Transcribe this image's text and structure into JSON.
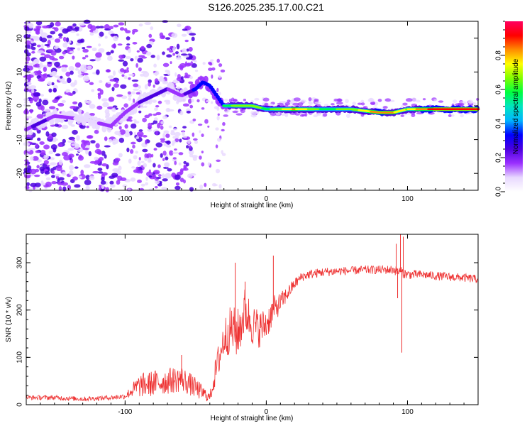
{
  "title": "S126.2025.235.17.00.C21",
  "chart_data": [
    {
      "type": "heatmap",
      "xlabel": "Height of straight line (km)",
      "ylabel": "Frequency (Hz)",
      "xlim": [
        -170,
        150
      ],
      "ylim": [
        -25,
        25
      ],
      "x_ticks": [
        -100,
        0,
        100
      ],
      "y_ticks": [
        -20,
        -10,
        0,
        10,
        20
      ],
      "colorbar": {
        "label": "Normalized spectral amplitude",
        "range": [
          0,
          1
        ],
        "ticks": [
          "0.0",
          "0.2",
          "0.4",
          "0.6",
          "0.8"
        ],
        "tick_values": [
          0.0,
          0.2,
          0.4,
          0.6,
          0.8
        ],
        "colors": [
          "#ffffff",
          "#e8d8ff",
          "#9b30ff",
          "#4b00e0",
          "#0000ff",
          "#00b4ff",
          "#00e5c0",
          "#00ff40",
          "#80ff00",
          "#ffff00",
          "#ff8c00",
          "#ff0000",
          "#ff0060"
        ]
      },
      "ridge": [
        {
          "x": -170,
          "y": -7,
          "a": 0.25
        },
        {
          "x": -160,
          "y": -5,
          "a": 0.35
        },
        {
          "x": -150,
          "y": -3,
          "a": 0.25
        },
        {
          "x": -130,
          "y": -4,
          "a": 0.15
        },
        {
          "x": -110,
          "y": -6,
          "a": 0.2
        },
        {
          "x": -100,
          "y": -2,
          "a": 0.25
        },
        {
          "x": -90,
          "y": 1,
          "a": 0.3
        },
        {
          "x": -80,
          "y": 3,
          "a": 0.3
        },
        {
          "x": -70,
          "y": 5,
          "a": 0.3
        },
        {
          "x": -60,
          "y": 3,
          "a": 0.25
        },
        {
          "x": -50,
          "y": 5,
          "a": 0.45
        },
        {
          "x": -45,
          "y": 7,
          "a": 0.5
        },
        {
          "x": -40,
          "y": 6,
          "a": 0.5
        },
        {
          "x": -35,
          "y": 3,
          "a": 0.45
        },
        {
          "x": -30,
          "y": 0,
          "a": 0.55
        },
        {
          "x": -20,
          "y": 0,
          "a": 0.7
        },
        {
          "x": -10,
          "y": 0,
          "a": 0.7
        },
        {
          "x": 0,
          "y": -1,
          "a": 0.6
        },
        {
          "x": 20,
          "y": -1,
          "a": 0.8
        },
        {
          "x": 40,
          "y": -1,
          "a": 0.6
        },
        {
          "x": 60,
          "y": -1,
          "a": 0.65
        },
        {
          "x": 80,
          "y": -2,
          "a": 0.85
        },
        {
          "x": 90,
          "y": -2,
          "a": 0.8
        },
        {
          "x": 100,
          "y": -1,
          "a": 0.7
        },
        {
          "x": 110,
          "y": -1,
          "a": 0.85
        },
        {
          "x": 130,
          "y": -1,
          "a": 0.95
        },
        {
          "x": 150,
          "y": -1,
          "a": 0.9
        }
      ]
    },
    {
      "type": "line",
      "xlabel": "Height of straight line (km)",
      "ylabel": "SNR (10 * v/v)",
      "xlim": [
        -170,
        150
      ],
      "ylim": [
        0,
        360
      ],
      "x_ticks": [
        -100,
        0,
        100
      ],
      "y_ticks": [
        0,
        100,
        200,
        300
      ],
      "color": "#ee3030",
      "series": [
        {
          "name": "SNR",
          "x": [
            -170,
            -150,
            -130,
            -110,
            -100,
            -95,
            -90,
            -80,
            -70,
            -60,
            -50,
            -40,
            -35,
            -30,
            -25,
            -20,
            -15,
            -10,
            -5,
            0,
            5,
            10,
            15,
            20,
            25,
            30,
            40,
            50,
            60,
            70,
            80,
            90,
            95,
            100,
            110,
            120,
            130,
            140,
            150
          ],
          "values": [
            15,
            15,
            12,
            15,
            18,
            30,
            40,
            45,
            50,
            55,
            35,
            15,
            80,
            140,
            160,
            150,
            200,
            170,
            160,
            170,
            200,
            215,
            235,
            255,
            270,
            275,
            280,
            282,
            283,
            285,
            285,
            285,
            280,
            275,
            275,
            272,
            270,
            268,
            265
          ],
          "noise": [
            5,
            5,
            5,
            5,
            6,
            15,
            25,
            28,
            28,
            28,
            22,
            10,
            35,
            45,
            50,
            55,
            50,
            45,
            40,
            35,
            30,
            22,
            16,
            12,
            10,
            10,
            10,
            9,
            9,
            9,
            9,
            10,
            12,
            10,
            9,
            9,
            9,
            9,
            9
          ]
        }
      ],
      "spikes": [
        {
          "x": -60,
          "y": 105
        },
        {
          "x": -22,
          "y": 300
        },
        {
          "x": -15,
          "y": 260
        },
        {
          "x": 5,
          "y": 315
        },
        {
          "x": 92,
          "y": 340
        },
        {
          "x": 95,
          "y": 365
        },
        {
          "x": 96,
          "y": 110
        },
        {
          "x": 97,
          "y": 355
        },
        {
          "x": 93,
          "y": 225
        }
      ]
    }
  ]
}
